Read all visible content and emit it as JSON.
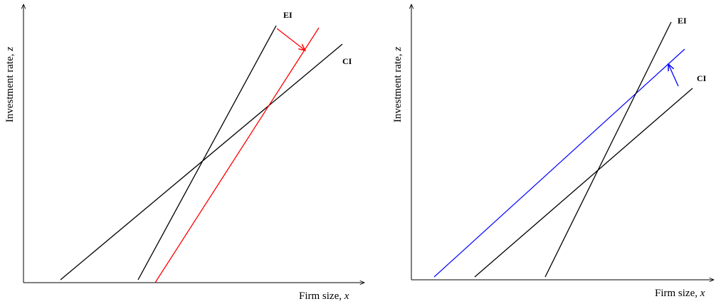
{
  "panels": [
    {
      "x_axis_label": "Firm size, ",
      "x_axis_var": "x",
      "y_axis_label": "Investment rate, ",
      "y_axis_var": "z",
      "ei_label": "EI",
      "ci_label": "CI",
      "shift_color": "#ff0000",
      "shift_description": "EI shifts right"
    },
    {
      "x_axis_label": "Firm size, ",
      "x_axis_var": "x",
      "y_axis_label": "Investment rate, ",
      "y_axis_var": "z",
      "ei_label": "EI",
      "ci_label": "CI",
      "shift_color": "#0000ff",
      "shift_description": "CI shifts up"
    }
  ]
}
